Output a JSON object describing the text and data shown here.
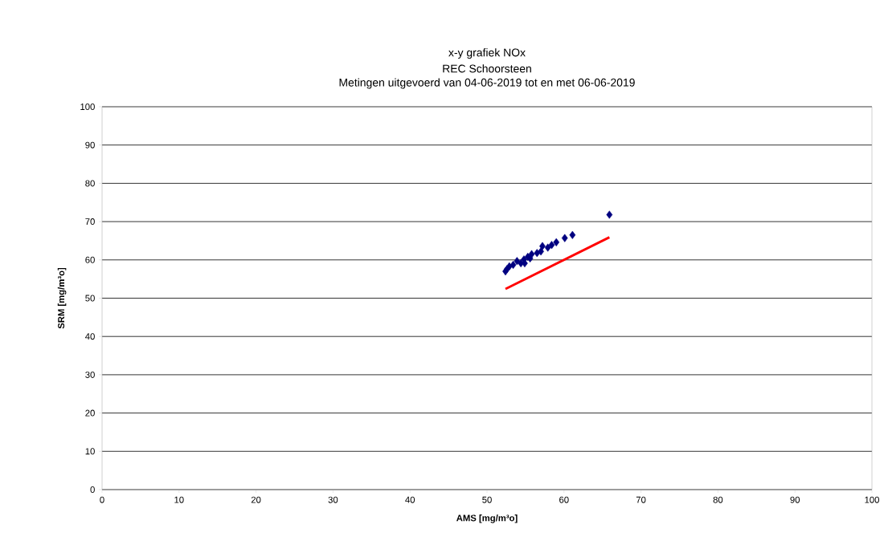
{
  "chart_data": {
    "type": "scatter",
    "title": "x-y grafiek NOx",
    "subtitle": "REC Schoorsteen",
    "annotations": [
      "Metingen uitgevoerd van 04-06-2019 tot en met 06-06-2019"
    ],
    "xlabel": "AMS [mg/m³o]",
    "ylabel": "SRM [mg/m³o]",
    "xlim": [
      0,
      100
    ],
    "ylim": [
      0,
      100
    ],
    "xticks": [
      0,
      10,
      20,
      30,
      40,
      50,
      60,
      70,
      80,
      90,
      100
    ],
    "yticks": [
      0,
      10,
      20,
      30,
      40,
      50,
      60,
      70,
      80,
      90,
      100
    ],
    "grid": "y",
    "marker": "diamond",
    "series": [
      {
        "color": "#000080",
        "x": [
          52.4,
          52.6,
          52.9,
          53.4,
          53.9,
          54.4,
          54.8,
          54.9,
          55.3,
          55.6,
          55.8,
          56.5,
          57.0,
          57.2,
          57.9,
          58.4,
          59.0,
          60.1,
          61.1,
          65.9
        ],
        "values": [
          57.0,
          57.6,
          58.3,
          58.7,
          59.7,
          59.1,
          60.1,
          59.1,
          60.8,
          60.4,
          61.5,
          61.8,
          62.2,
          63.6,
          63.2,
          63.9,
          64.6,
          65.7,
          66.5,
          71.8
        ]
      },
      {
        "type": "line",
        "color": "#ff0000",
        "marker": "none",
        "x": [
          52.4,
          65.9
        ],
        "values": [
          52.4,
          65.9
        ]
      }
    ]
  }
}
